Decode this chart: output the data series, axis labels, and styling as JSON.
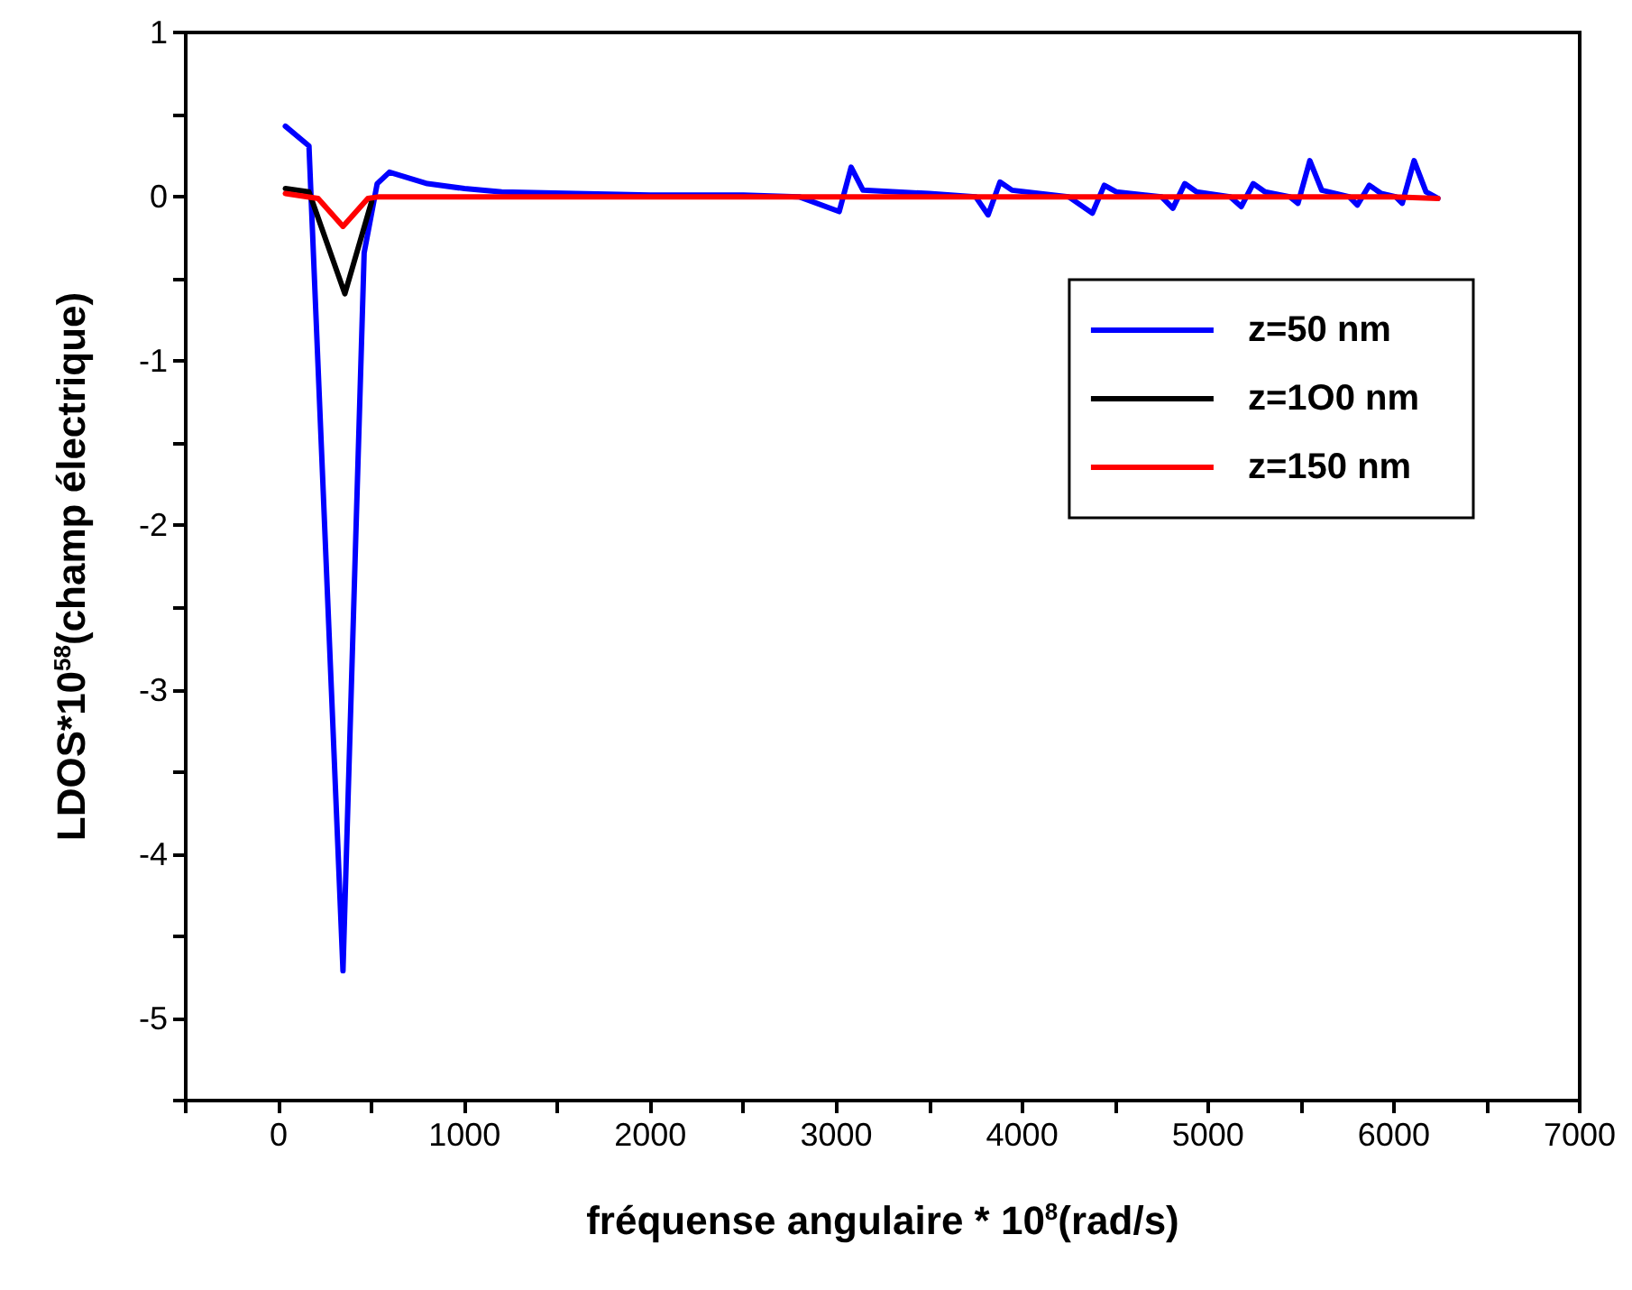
{
  "chart_data": {
    "type": "line",
    "xlabel": "fréquense angulaire * 10$^{8}$(rad/s)",
    "ylabel": "LDOS*10$^{58}$(champ électrique)",
    "xlim": [
      -500,
      7000
    ],
    "xticks": [
      {
        "value": -500,
        "label": null
      },
      0,
      {
        "value": 500,
        "label": null
      },
      1000,
      {
        "value": 1500,
        "label": null
      },
      2000,
      {
        "value": 2500,
        "label": null
      },
      3000,
      {
        "value": 3500,
        "label": null
      },
      4000,
      {
        "value": 4500,
        "label": null
      },
      5000,
      {
        "value": 5500,
        "label": null
      },
      6000,
      {
        "value": 6500,
        "label": null
      },
      7000
    ],
    "ylim": [
      -5.5,
      1
    ],
    "yticks": [
      {
        "value": -5.5,
        "label": null
      },
      -5,
      {
        "value": -4.5,
        "label": null
      },
      -4,
      {
        "value": -3.5,
        "label": null
      },
      -3,
      {
        "value": -2.5,
        "label": null
      },
      -2,
      {
        "value": -1.5,
        "label": null
      },
      -1,
      {
        "value": -0.5,
        "label": null
      },
      0,
      {
        "value": 0.5,
        "label": null
      },
      1
    ],
    "grid": false,
    "legend": "top right",
    "marker": "none",
    "line_style": "solid",
    "series": [
      {
        "name": "z=50 nm",
        "color": "#0000ff",
        "x": [
          36,
          163,
          346,
          460,
          530,
          596,
          800,
          1000,
          1200,
          1600,
          2000,
          2500,
          2800,
          3016,
          3080,
          3144,
          3500,
          3750,
          3817,
          3881,
          3946,
          4250,
          4378,
          4442,
          4506,
          4750,
          4811,
          4875,
          4939,
          5120,
          5179,
          5243,
          5307,
          5440,
          5484,
          5548,
          5612,
          5760,
          5804,
          5868,
          5932,
          6010,
          6045,
          6109,
          6173,
          6237
        ],
        "values": [
          0.43,
          0.31,
          -4.71,
          -0.34,
          0.08,
          0.15,
          0.08,
          0.05,
          0.03,
          0.02,
          0.01,
          0.01,
          0.0,
          -0.09,
          0.18,
          0.04,
          0.02,
          0.0,
          -0.11,
          0.09,
          0.04,
          0.0,
          -0.1,
          0.07,
          0.03,
          0.0,
          -0.07,
          0.08,
          0.03,
          0.0,
          -0.06,
          0.08,
          0.03,
          0.0,
          -0.04,
          0.22,
          0.04,
          0.0,
          -0.05,
          0.07,
          0.02,
          0.0,
          -0.04,
          0.22,
          0.03,
          -0.01
        ]
      },
      {
        "name": "z=1O0 nm",
        "color": "#000000",
        "x": [
          36,
          163,
          356,
          500
        ],
        "values": [
          0.05,
          0.03,
          -0.59,
          -0.03
        ]
      },
      {
        "name": "z=150 nm",
        "color": "#ff0000",
        "x": [
          36,
          212,
          346,
          480,
          540,
          1000,
          2000,
          3000,
          4000,
          5000,
          6000,
          6237
        ],
        "values": [
          0.02,
          -0.01,
          -0.18,
          -0.01,
          0.0,
          0.0,
          0.0,
          0.0,
          0.0,
          0.0,
          0.0,
          -0.01
        ]
      }
    ]
  }
}
